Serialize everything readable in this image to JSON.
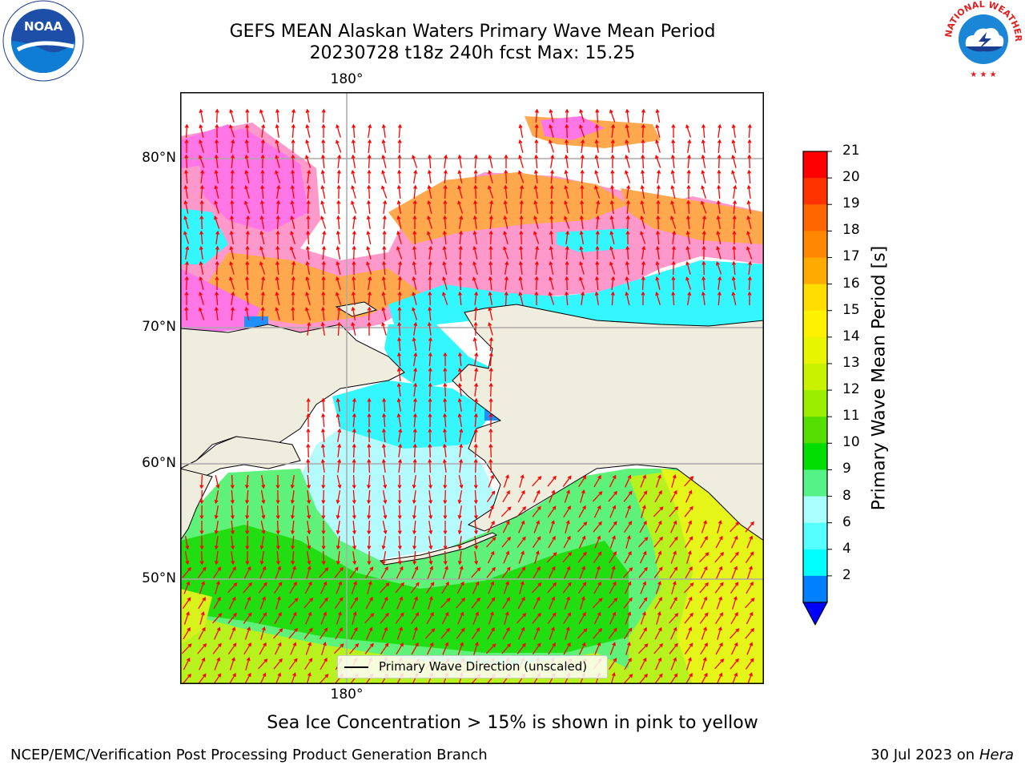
{
  "header": {
    "title_line1": "GEFS MEAN Alaskan Waters Primary Wave Mean Period",
    "title_line2": "20230728 t18z 240h fcst   Max: 15.25"
  },
  "logos": {
    "left_text": "NOAA",
    "left_ring_text": "NATIONAL OCEANIC AND ATMOSPHERIC ADMINISTRATION · U.S. DEPARTMENT OF COMMERCE",
    "right_ring_text": "NATIONAL WEATHER SERVICE"
  },
  "map": {
    "lon_label_top": "180°",
    "lon_label_bottom": "180°",
    "lat_labels": [
      "80°N",
      "70°N",
      "60°N",
      "50°N"
    ],
    "legend_label": "Primary Wave Direction (unscaled)",
    "colors": {
      "land": "#efeddd",
      "ice_pink": "#ff77e6",
      "ice_orange": "#ffa84d",
      "cyan": "#33f6ff",
      "light_cyan": "#b3fbff",
      "light_green": "#5ef27a",
      "green": "#22dd12",
      "yellow_green": "#b8f21e",
      "yellow": "#e6f519",
      "arrow": "#ff0000"
    }
  },
  "colorbar": {
    "title": "Primary Wave Mean Period [s]",
    "ticks": [
      "21",
      "20",
      "19",
      "18",
      "17",
      "16",
      "15",
      "14",
      "13",
      "12",
      "11",
      "10",
      "9",
      "8",
      "6",
      "4",
      "2"
    ],
    "colors": [
      "#ff0000",
      "#ff3300",
      "#ff6600",
      "#ff8800",
      "#ffaa00",
      "#ffdd00",
      "#fff200",
      "#e8f500",
      "#c8f200",
      "#99ee00",
      "#55dd00",
      "#00dd00",
      "#55f288",
      "#aaffff",
      "#55ffff",
      "#00ffff",
      "#0080ff"
    ],
    "extend_color": "#0000ff"
  },
  "caption": "Sea Ice Concentration > 15% is shown in pink to yellow",
  "footer": {
    "left": "NCEP/EMC/Verification Post Processing Product Generation Branch",
    "right_date": "30 Jul 2023 on ",
    "right_host": "Hera"
  }
}
